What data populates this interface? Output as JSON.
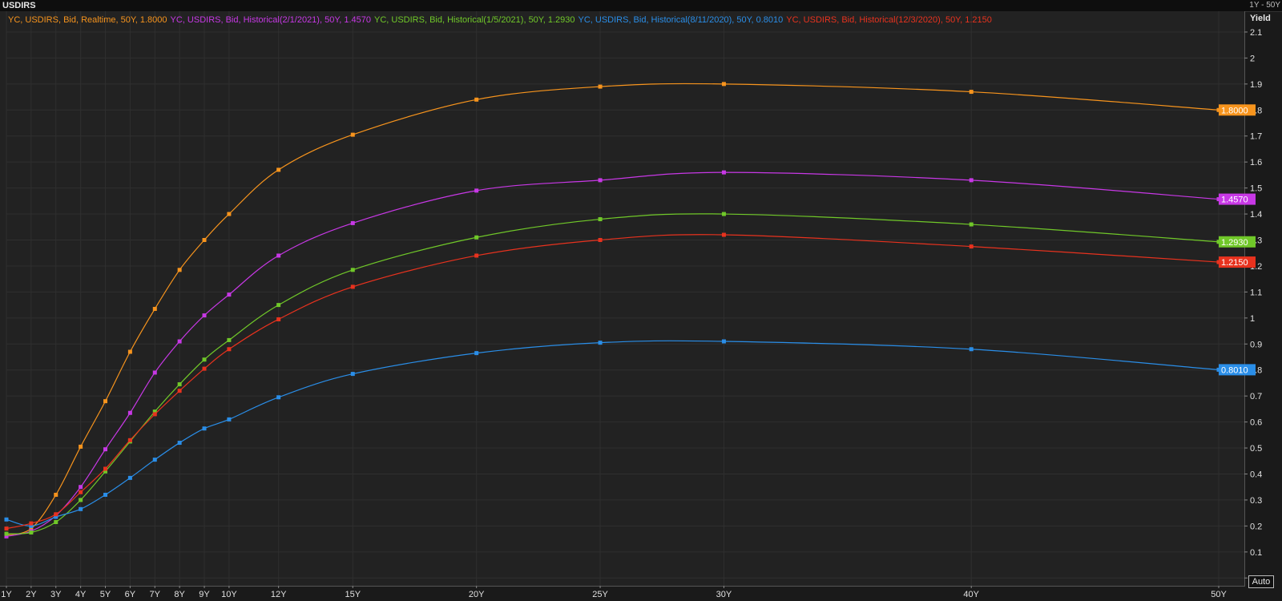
{
  "window": {
    "title": "USDIRS",
    "range": "1Y - 50Y",
    "auto_label": "Auto"
  },
  "chart_data": {
    "type": "line",
    "title": "",
    "xlabel": "",
    "ylabel": "Yield",
    "x_tenors": [
      1,
      2,
      3,
      4,
      5,
      6,
      7,
      8,
      9,
      10,
      12,
      15,
      20,
      25,
      30,
      40,
      50
    ],
    "x_ticks": [
      "1Y",
      "2Y",
      "3Y",
      "4Y",
      "5Y",
      "6Y",
      "7Y",
      "8Y",
      "9Y",
      "10Y",
      "12Y",
      "15Y",
      "20Y",
      "25Y",
      "30Y",
      "40Y",
      "50Y"
    ],
    "y_ticks": [
      "0",
      "0.1",
      "0.2",
      "0.3",
      "0.4",
      "0.5",
      "0.6",
      "0.7",
      "0.8",
      "0.9",
      "1",
      "1.1",
      "1.2",
      "1.3",
      "1.4",
      "1.5",
      "1.6",
      "1.7",
      "1.8",
      "1.9",
      "2",
      "2.1"
    ],
    "ylim": [
      -0.03,
      2.18
    ],
    "grid": true,
    "legend_position": "top-left",
    "series": [
      {
        "name": "YC, USDIRS, Bid, Realtime, 50Y, 1.8000",
        "end_label": "1.8000",
        "color": "#f7941d",
        "values": [
          0.165,
          0.19,
          0.32,
          0.505,
          0.68,
          0.87,
          1.035,
          1.185,
          1.3,
          1.4,
          1.57,
          1.705,
          1.84,
          1.89,
          1.9,
          1.87,
          1.8
        ]
      },
      {
        "name": "YC, USDIRS, Bid, Historical(2/1/2021), 50Y, 1.4570",
        "end_label": "1.4570",
        "color": "#c838e6",
        "values": [
          0.16,
          0.18,
          0.24,
          0.35,
          0.495,
          0.635,
          0.79,
          0.91,
          1.01,
          1.09,
          1.24,
          1.365,
          1.49,
          1.53,
          1.56,
          1.53,
          1.457
        ]
      },
      {
        "name": "YC, USDIRS, Bid, Historical(1/5/2021), 50Y, 1.2930",
        "end_label": "1.2930",
        "color": "#70c829",
        "values": [
          0.17,
          0.175,
          0.215,
          0.3,
          0.41,
          0.525,
          0.64,
          0.745,
          0.84,
          0.915,
          1.05,
          1.185,
          1.31,
          1.38,
          1.4,
          1.36,
          1.293
        ]
      },
      {
        "name": "YC, USDIRS, Bid, Historical(8/11/2020), 50Y, 0.8010",
        "end_label": "0.8010",
        "color": "#2a8ee8",
        "values": [
          0.225,
          0.2,
          0.235,
          0.265,
          0.32,
          0.385,
          0.455,
          0.52,
          0.575,
          0.61,
          0.695,
          0.785,
          0.865,
          0.905,
          0.91,
          0.88,
          0.801
        ]
      },
      {
        "name": "YC, USDIRS, Bid, Historical(12/3/2020), 50Y, 1.2150",
        "end_label": "1.2150",
        "color": "#e8321e",
        "values": [
          0.19,
          0.21,
          0.245,
          0.33,
          0.42,
          0.53,
          0.63,
          0.72,
          0.805,
          0.88,
          0.995,
          1.12,
          1.24,
          1.3,
          1.32,
          1.275,
          1.215
        ]
      }
    ]
  }
}
